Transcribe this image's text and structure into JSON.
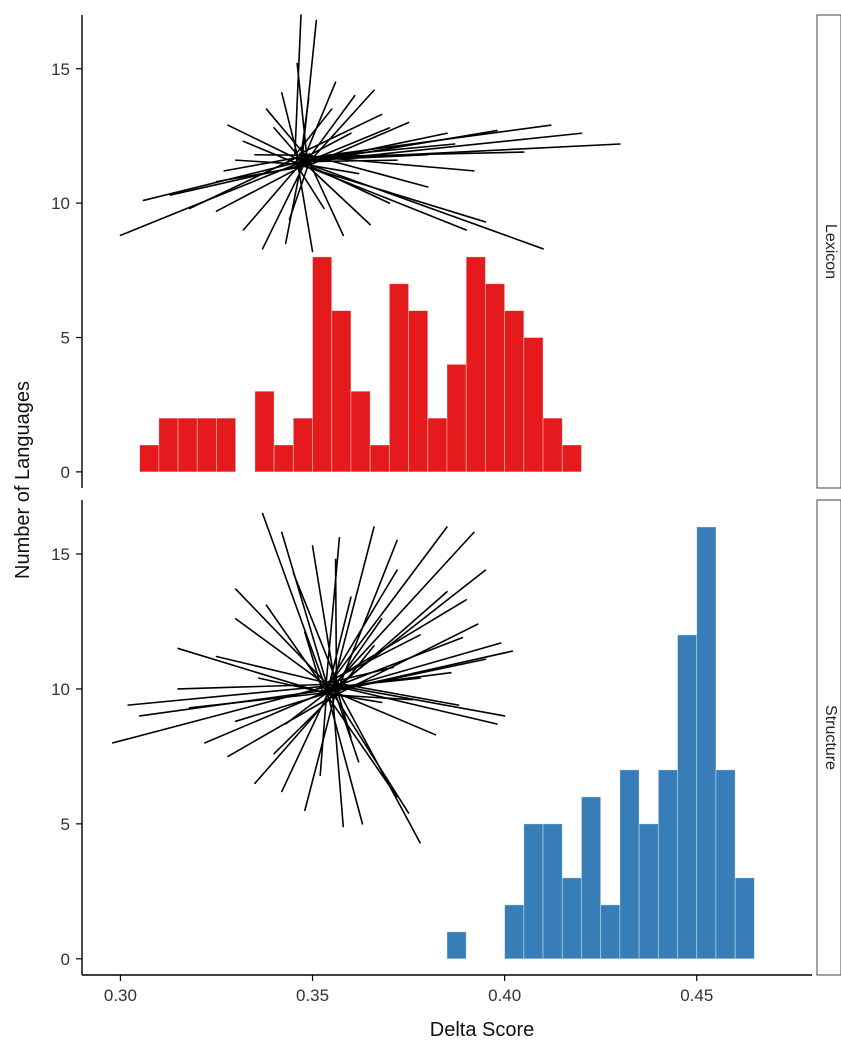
{
  "chart_data": {
    "type": "bar",
    "subtype": "faceted-histogram-with-network-overlay",
    "xlabel": "Delta Score",
    "ylabel": "Number of Languages",
    "xlim": [
      0.29,
      0.48
    ],
    "x_ticks": [
      0.3,
      0.35,
      0.4,
      0.45
    ],
    "x_tick_labels": [
      "0.30",
      "0.35",
      "0.40",
      "0.45"
    ],
    "y_ticks": [
      0,
      5,
      10,
      15
    ],
    "y_tick_labels": [
      "0",
      "5",
      "10",
      "15"
    ],
    "bin_width": 0.005,
    "grid": false,
    "legend": "none",
    "panels": [
      {
        "strip_label": "Lexicon",
        "ylim": [
          -0.6,
          17
        ],
        "fill_color": "#e41a1c",
        "bin_starts": [
          0.305,
          0.31,
          0.315,
          0.32,
          0.325,
          0.33,
          0.335,
          0.34,
          0.345,
          0.35,
          0.355,
          0.36,
          0.365,
          0.37,
          0.375,
          0.38,
          0.385,
          0.39,
          0.395,
          0.4,
          0.405,
          0.41,
          0.415,
          0.42
        ],
        "counts": [
          1,
          2,
          2,
          2,
          2,
          0,
          3,
          1,
          2,
          8,
          6,
          3,
          1,
          7,
          6,
          2,
          4,
          8,
          7,
          6,
          5,
          2,
          1,
          0
        ],
        "network_overlay": {
          "hub_x": 0.3475,
          "hub_y": 11.6,
          "lines": [
            [
              0.347,
              17.0
            ],
            [
              0.351,
              16.8
            ],
            [
              0.346,
              15.2
            ],
            [
              0.332,
              12.3
            ],
            [
              0.328,
              12.9
            ],
            [
              0.338,
              13.5
            ],
            [
              0.342,
              14.1
            ],
            [
              0.356,
              14.5
            ],
            [
              0.361,
              14.0
            ],
            [
              0.368,
              13.3
            ],
            [
              0.375,
              13.0
            ],
            [
              0.385,
              12.6
            ],
            [
              0.398,
              12.7
            ],
            [
              0.42,
              12.6
            ],
            [
              0.43,
              12.2
            ],
            [
              0.412,
              12.9
            ],
            [
              0.405,
              11.9
            ],
            [
              0.392,
              11.2
            ],
            [
              0.38,
              10.6
            ],
            [
              0.37,
              10.0
            ],
            [
              0.395,
              9.3
            ],
            [
              0.41,
              8.3
            ],
            [
              0.39,
              9.0
            ],
            [
              0.365,
              9.2
            ],
            [
              0.358,
              8.8
            ],
            [
              0.35,
              8.2
            ],
            [
              0.343,
              8.5
            ],
            [
              0.337,
              8.3
            ],
            [
              0.332,
              9.0
            ],
            [
              0.325,
              9.7
            ],
            [
              0.313,
              10.3
            ],
            [
              0.306,
              10.1
            ],
            [
              0.3,
              8.8
            ],
            [
              0.318,
              9.8
            ],
            [
              0.327,
              11.2
            ],
            [
              0.335,
              11.8
            ],
            [
              0.34,
              12.8
            ],
            [
              0.325,
              10.8
            ],
            [
              0.33,
              11.6
            ],
            [
              0.362,
              11.1
            ],
            [
              0.372,
              11.6
            ],
            [
              0.38,
              11.8
            ],
            [
              0.387,
              12.2
            ],
            [
              0.36,
              12.6
            ],
            [
              0.355,
              13.5
            ],
            [
              0.349,
              13.9
            ],
            [
              0.344,
              9.4
            ],
            [
              0.353,
              9.8
            ],
            [
              0.37,
              12.8
            ],
            [
              0.366,
              14.2
            ]
          ]
        }
      },
      {
        "strip_label": "Structure",
        "ylim": [
          -0.6,
          17
        ],
        "fill_color": "#377eb8",
        "bin_starts": [
          0.385,
          0.39,
          0.395,
          0.4,
          0.405,
          0.41,
          0.415,
          0.42,
          0.425,
          0.43,
          0.435,
          0.44,
          0.445,
          0.45,
          0.455,
          0.46,
          0.465
        ],
        "counts": [
          1,
          0,
          0,
          2,
          5,
          5,
          3,
          6,
          2,
          7,
          5,
          7,
          12,
          16,
          7,
          3,
          0
        ],
        "network_overlay": {
          "hub_x": 0.355,
          "hub_y": 10.0,
          "lines": [
            [
              0.337,
              16.5
            ],
            [
              0.342,
              15.8
            ],
            [
              0.35,
              15.3
            ],
            [
              0.357,
              15.6
            ],
            [
              0.366,
              16.0
            ],
            [
              0.372,
              15.5
            ],
            [
              0.385,
              16.0
            ],
            [
              0.392,
              15.8
            ],
            [
              0.395,
              14.4
            ],
            [
              0.39,
              13.3
            ],
            [
              0.393,
              12.4
            ],
            [
              0.399,
              11.7
            ],
            [
              0.395,
              11.1
            ],
            [
              0.402,
              11.4
            ],
            [
              0.386,
              10.6
            ],
            [
              0.378,
              10.4
            ],
            [
              0.4,
              9.0
            ],
            [
              0.398,
              8.7
            ],
            [
              0.388,
              9.4
            ],
            [
              0.376,
              9.6
            ],
            [
              0.368,
              9.5
            ],
            [
              0.382,
              8.3
            ],
            [
              0.372,
              6.0
            ],
            [
              0.375,
              5.4
            ],
            [
              0.378,
              4.3
            ],
            [
              0.363,
              5.0
            ],
            [
              0.358,
              4.9
            ],
            [
              0.348,
              5.5
            ],
            [
              0.342,
              6.2
            ],
            [
              0.335,
              6.5
            ],
            [
              0.328,
              7.5
            ],
            [
              0.322,
              8.0
            ],
            [
              0.305,
              9.0
            ],
            [
              0.298,
              8.0
            ],
            [
              0.302,
              9.4
            ],
            [
              0.315,
              10.0
            ],
            [
              0.325,
              11.2
            ],
            [
              0.315,
              11.5
            ],
            [
              0.33,
              12.6
            ],
            [
              0.338,
              13.1
            ],
            [
              0.33,
              13.7
            ],
            [
              0.345,
              14.3
            ],
            [
              0.36,
              13.4
            ],
            [
              0.368,
              12.6
            ],
            [
              0.378,
              12.0
            ],
            [
              0.371,
              10.8
            ],
            [
              0.356,
              14.8
            ],
            [
              0.33,
              8.8
            ],
            [
              0.318,
              9.3
            ],
            [
              0.34,
              7.6
            ],
            [
              0.352,
              6.8
            ],
            [
              0.362,
              7.3
            ],
            [
              0.385,
              13.6
            ],
            [
              0.372,
              14.4
            ],
            [
              0.36,
              8.2
            ],
            [
              0.348,
              12.1
            ],
            [
              0.336,
              10.4
            ],
            [
              0.366,
              11.6
            ],
            [
              0.389,
              11.9
            ],
            [
              0.343,
              8.7
            ]
          ]
        }
      }
    ]
  }
}
